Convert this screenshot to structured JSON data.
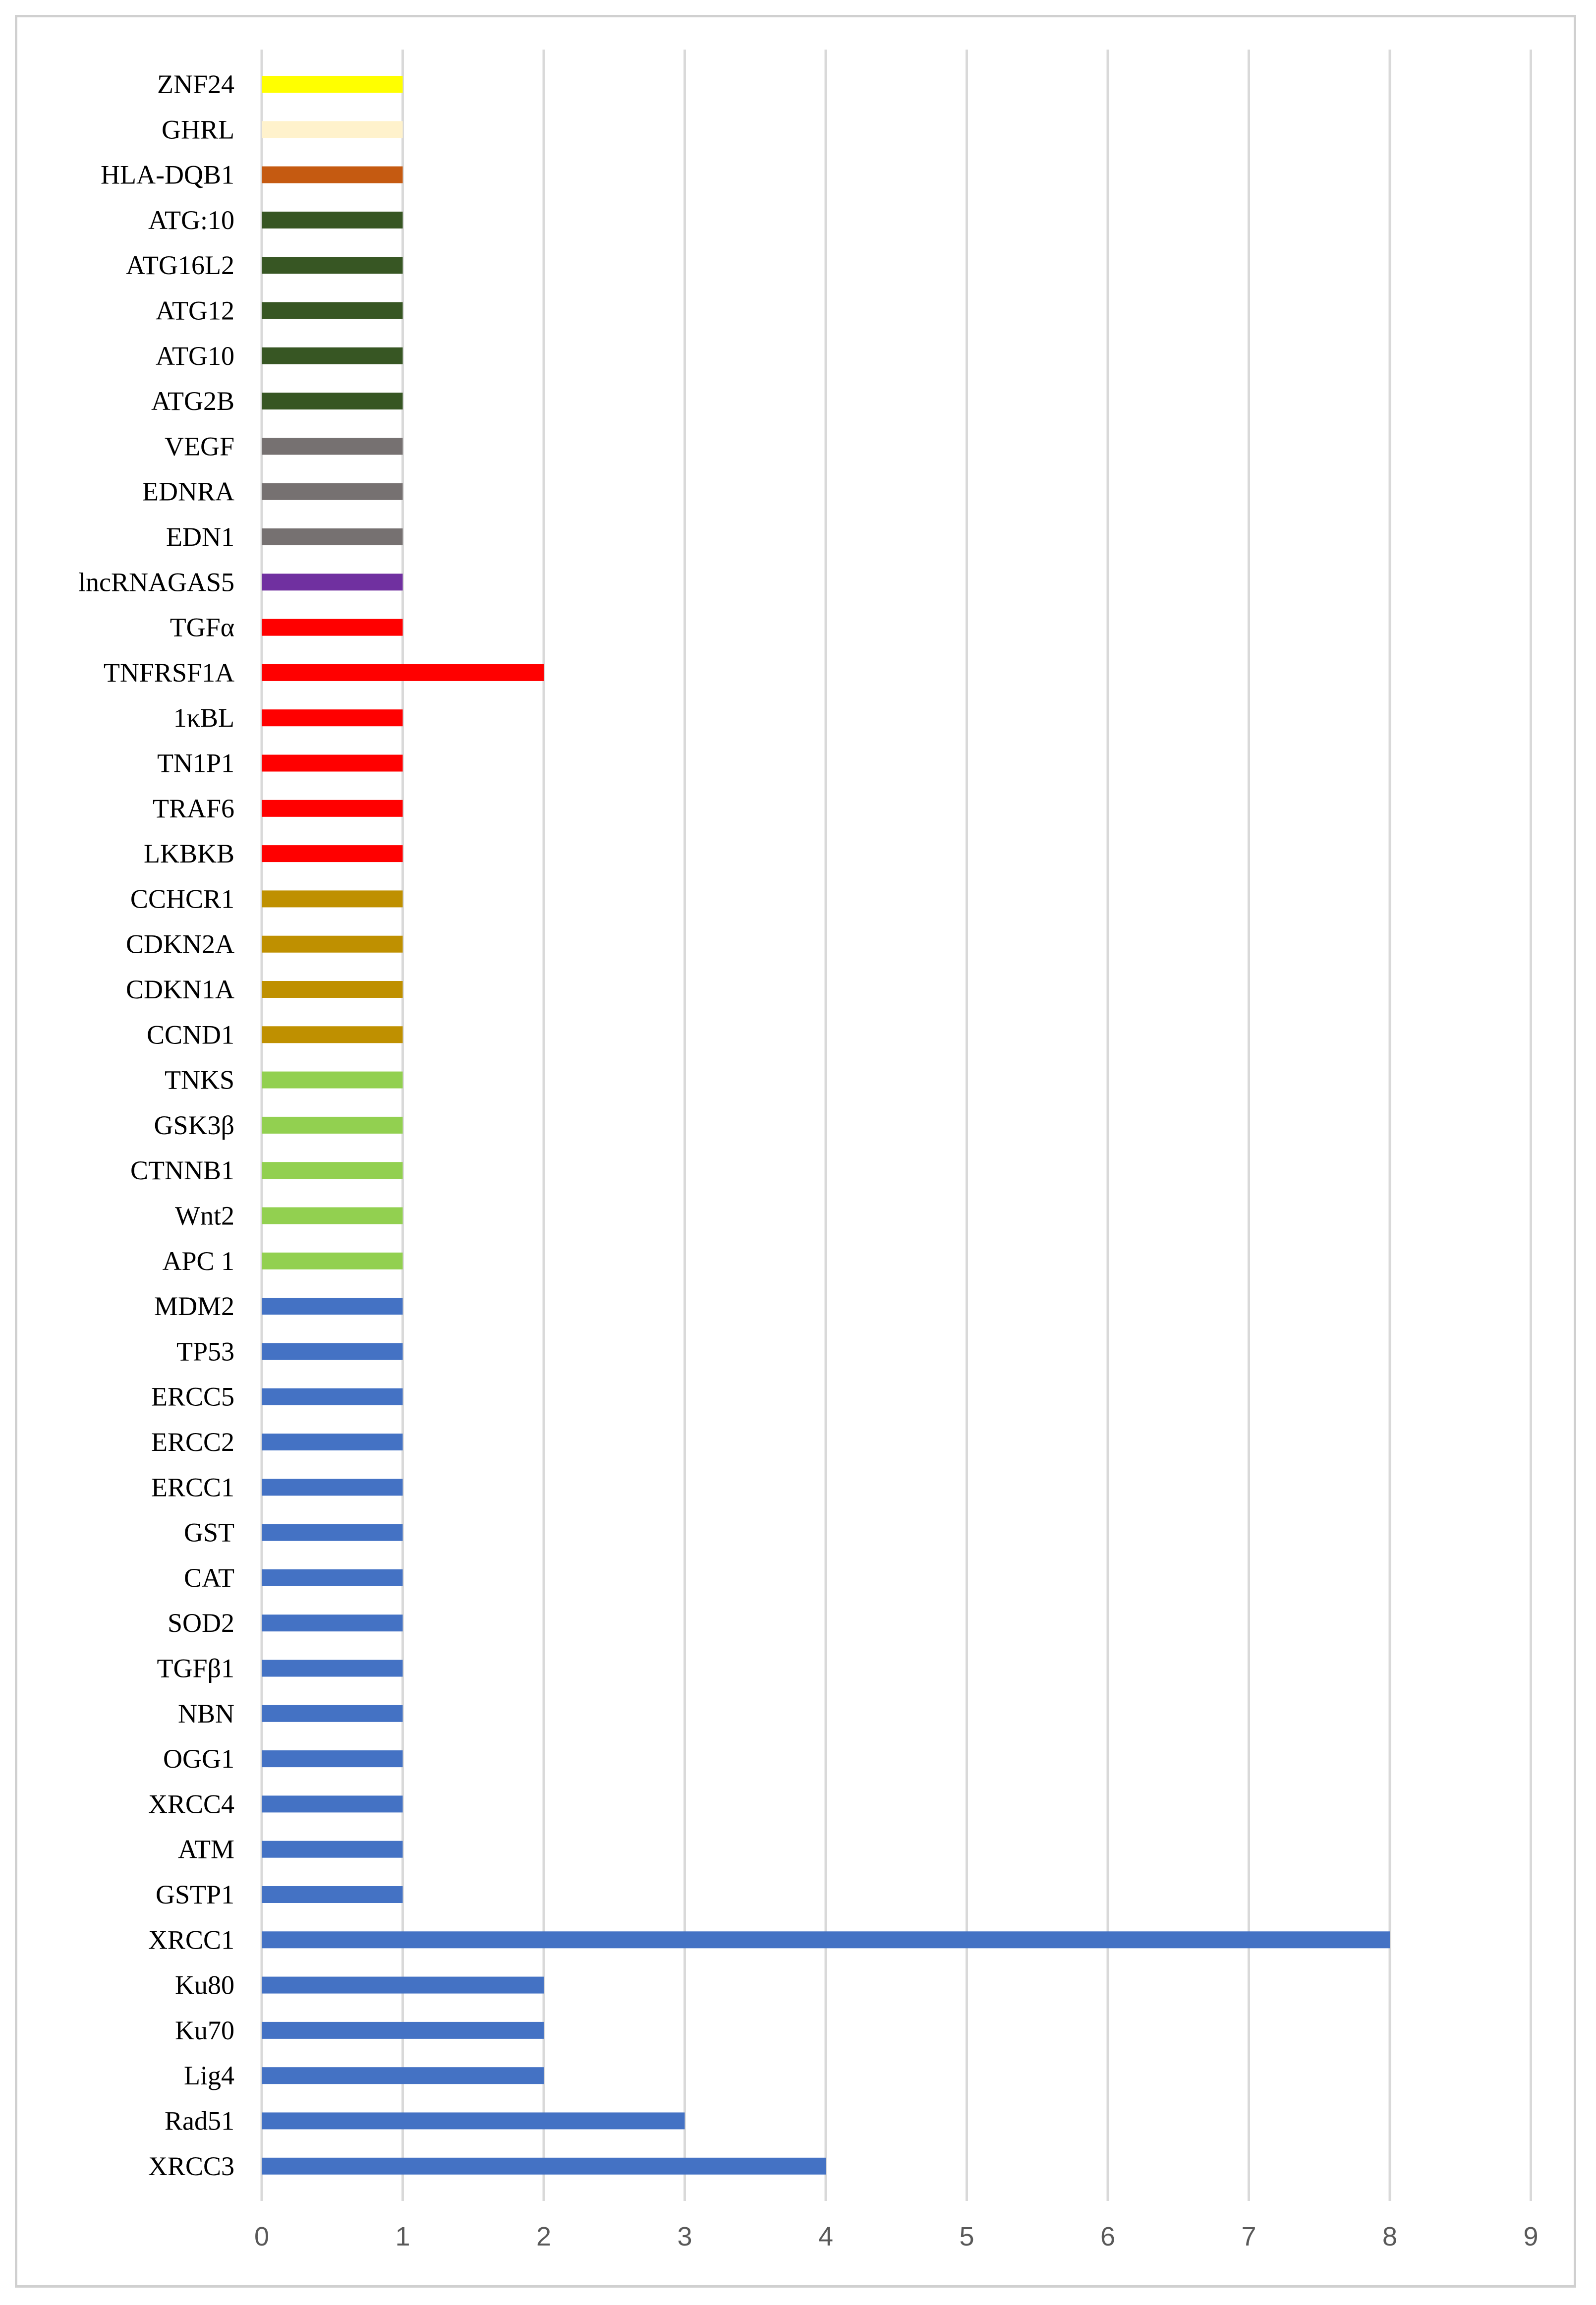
{
  "chart_data": {
    "type": "bar",
    "orientation": "horizontal",
    "title": "",
    "xlabel": "",
    "ylabel": "",
    "xlim": [
      0,
      9
    ],
    "xticks": [
      0,
      1,
      2,
      3,
      4,
      5,
      6,
      7,
      8,
      9
    ],
    "grid": "vertical",
    "legend": "none",
    "categories": [
      "ZNF24",
      "GHRL",
      "HLA-DQB1",
      "ATG:10",
      "ATG16L2",
      "ATG12",
      "ATG10",
      "ATG2B",
      "VEGF",
      "EDNRA",
      "EDN1",
      "lncRNAGAS5",
      "TGFα",
      "TNFRSF1A",
      "1κBL",
      "TN1P1",
      "TRAF6",
      "LKBKB",
      "CCHCR1",
      "CDKN2A",
      "CDKN1A",
      "CCND1",
      "TNKS",
      "GSK3β",
      "CTNNB1",
      "Wnt2",
      "APC 1",
      "MDM2",
      "TP53",
      "ERCC5",
      "ERCC2",
      "ERCC1",
      "GST",
      "CAT",
      "SOD2",
      "TGFβ1",
      "NBN",
      "OGG1",
      "XRCC4",
      "ATM",
      "GSTP1",
      "XRCC1",
      "Ku80",
      "Ku70",
      "Lig4",
      "Rad51",
      "XRCC3"
    ],
    "values": [
      1,
      1,
      1,
      1,
      1,
      1,
      1,
      1,
      1,
      1,
      1,
      1,
      1,
      2,
      1,
      1,
      1,
      1,
      1,
      1,
      1,
      1,
      1,
      1,
      1,
      1,
      1,
      1,
      1,
      1,
      1,
      1,
      1,
      1,
      1,
      1,
      1,
      1,
      1,
      1,
      1,
      8,
      2,
      2,
      2,
      3,
      4
    ],
    "colors": [
      "#ffff00",
      "#fff2cc",
      "#c55a11",
      "#375623",
      "#375623",
      "#375623",
      "#375623",
      "#375623",
      "#767171",
      "#767171",
      "#767171",
      "#7030a0",
      "#ff0000",
      "#ff0000",
      "#ff0000",
      "#ff0000",
      "#ff0000",
      "#ff0000",
      "#bf9000",
      "#bf9000",
      "#bf9000",
      "#bf9000",
      "#92d050",
      "#92d050",
      "#92d050",
      "#92d050",
      "#92d050",
      "#4472c4",
      "#4472c4",
      "#4472c4",
      "#4472c4",
      "#4472c4",
      "#4472c4",
      "#4472c4",
      "#4472c4",
      "#4472c4",
      "#4472c4",
      "#4472c4",
      "#4472c4",
      "#4472c4",
      "#4472c4",
      "#4472c4",
      "#4472c4",
      "#4472c4",
      "#4472c4",
      "#4472c4",
      "#4472c4"
    ],
    "gridline_color": "#d9d9d9"
  }
}
